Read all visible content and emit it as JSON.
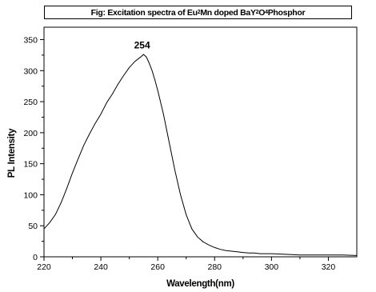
{
  "chart_data": {
    "type": "line",
    "title_parts": [
      {
        "text": "Fig: Excitation spectra of Eu"
      },
      {
        "text": "2",
        "sub": true
      },
      {
        "text": "Mn doped BaY"
      },
      {
        "text": "2",
        "sub": true
      },
      {
        "text": "O"
      },
      {
        "text": "4",
        "sub": true
      },
      {
        "text": "Phosphor"
      }
    ],
    "xlabel": "Wavelength(nm)",
    "ylabel": "PL Intensity",
    "xlim": [
      220,
      330
    ],
    "ylim": [
      0,
      370
    ],
    "xticks": [
      220,
      240,
      260,
      280,
      300,
      320
    ],
    "yticks": [
      0,
      50,
      100,
      150,
      200,
      250,
      300,
      350
    ],
    "grid": false,
    "annotations": [
      {
        "text": "254",
        "x": 254.5,
        "y": 336
      }
    ],
    "series": [
      {
        "color": "#000000",
        "x": [
          220,
          222,
          224,
          226,
          228,
          230,
          232,
          234,
          236,
          238,
          240,
          242,
          244,
          246,
          248,
          250,
          252,
          254,
          255,
          256,
          257,
          258,
          259,
          260,
          262,
          264,
          266,
          268,
          270,
          272,
          274,
          276,
          278,
          280,
          282,
          284,
          286,
          288,
          290,
          292,
          294,
          296,
          298,
          300,
          305,
          310,
          315,
          320,
          325,
          330
        ],
        "y": [
          45,
          55,
          68,
          87,
          110,
          135,
          158,
          180,
          198,
          215,
          230,
          248,
          262,
          278,
          292,
          305,
          315,
          322,
          326,
          322,
          312,
          300,
          285,
          268,
          230,
          185,
          140,
          100,
          68,
          45,
          32,
          24,
          19,
          15,
          12,
          10,
          9,
          8,
          7,
          6,
          6,
          5,
          5,
          5,
          4,
          3,
          3,
          3,
          3,
          2
        ]
      }
    ]
  }
}
